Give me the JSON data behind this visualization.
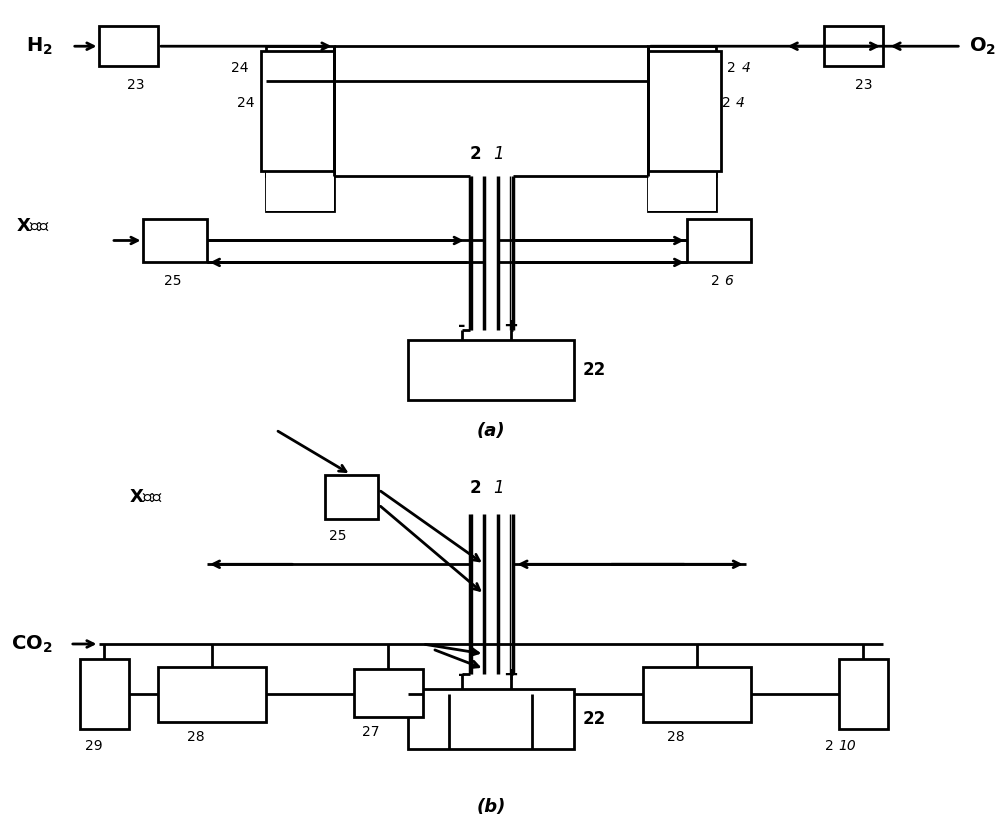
{
  "bg_color": "#ffffff",
  "line_color": "#000000",
  "fig_width": 10.0,
  "fig_height": 8.23
}
